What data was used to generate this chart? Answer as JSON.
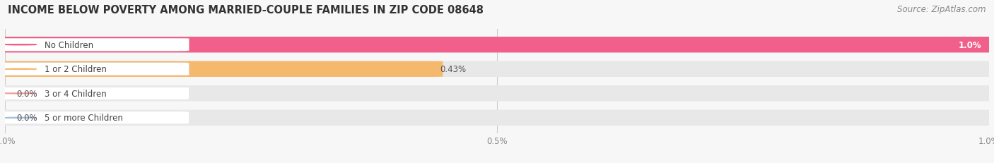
{
  "title": "INCOME BELOW POVERTY AMONG MARRIED-COUPLE FAMILIES IN ZIP CODE 08648",
  "source": "Source: ZipAtlas.com",
  "categories": [
    "No Children",
    "1 or 2 Children",
    "3 or 4 Children",
    "5 or more Children"
  ],
  "values": [
    1.0,
    0.43,
    0.0,
    0.0
  ],
  "bar_colors": [
    "#f0608a",
    "#f5b96e",
    "#f0a0a0",
    "#a8c0e0"
  ],
  "value_labels": [
    "1.0%",
    "0.43%",
    "0.0%",
    "0.0%"
  ],
  "value_label_inside": [
    true,
    false,
    false,
    false
  ],
  "xlim_max": 1.0,
  "xticks": [
    0.0,
    0.5,
    1.0
  ],
  "xticklabels": [
    "0.0%",
    "0.5%",
    "1.0%"
  ],
  "background_color": "#f7f7f7",
  "bar_bg_color": "#e8e8e8",
  "title_fontsize": 10.5,
  "source_fontsize": 8.5,
  "label_fontsize": 8.5,
  "value_fontsize": 8.5,
  "tick_fontsize": 8.5
}
